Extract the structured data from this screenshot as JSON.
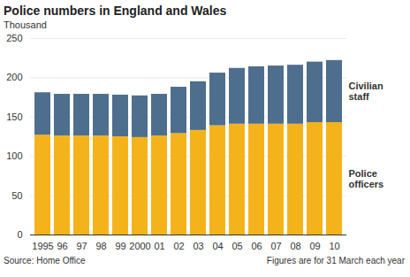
{
  "chart_data": {
    "type": "bar",
    "title": "Police numbers in England and Wales",
    "subtitle": "Thousand",
    "source": "Source: Home Office",
    "note": "Figures are for 31 March each year",
    "categories": [
      "1995",
      "96",
      "97",
      "98",
      "99",
      "2000",
      "01",
      "02",
      "03",
      "04",
      "05",
      "06",
      "07",
      "08",
      "09",
      "10"
    ],
    "series": [
      {
        "name": "Police officers",
        "color": "#f5b31b",
        "values": [
          127,
          126,
          126,
          126,
          125,
          124,
          126,
          129,
          133,
          139,
          141,
          141,
          141,
          141,
          143,
          143
        ]
      },
      {
        "name": "Civilian staff",
        "color": "#4e6e8e",
        "values": [
          54,
          53,
          53,
          53,
          53,
          53,
          53,
          59,
          62,
          67,
          71,
          73,
          74,
          75,
          77,
          79
        ]
      }
    ],
    "stacked": true,
    "ylim": [
      0,
      250
    ],
    "yticks": [
      0,
      50,
      100,
      150,
      200,
      250
    ],
    "grid": true
  }
}
